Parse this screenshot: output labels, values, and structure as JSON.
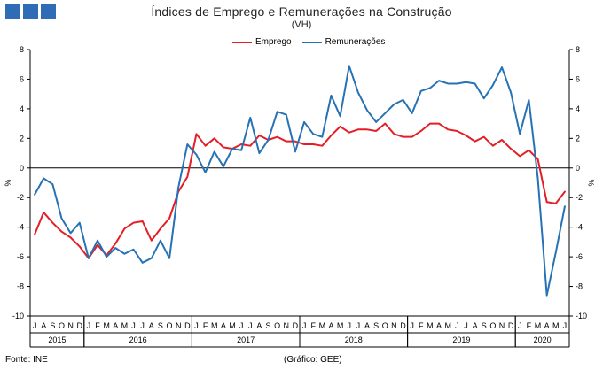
{
  "header": {
    "title": "Índices de Emprego  e Remunerações na Construção",
    "subtitle": "(VH)"
  },
  "footer": {
    "source": "Fonte: INE",
    "credit": "(Gráfico: GEE)"
  },
  "colors": {
    "emprego": "#e41e26",
    "remuneracoes": "#2672b5",
    "logo": "#2e6cb5"
  },
  "chart_data": {
    "type": "line",
    "title": "Índices de Emprego  e Remunerações na Construção",
    "subtitle": "(VH)",
    "ylabel_left": "%",
    "ylabel_right": "%",
    "ylim": [
      -10,
      8
    ],
    "yticks": [
      -10,
      -8,
      -6,
      -4,
      -2,
      0,
      2,
      4,
      6,
      8
    ],
    "grid": false,
    "legend_position": "top",
    "month_labels": [
      "J",
      "A",
      "S",
      "O",
      "N",
      "D",
      "J",
      "F",
      "M",
      "A",
      "M",
      "J",
      "J",
      "A",
      "S",
      "O",
      "N",
      "D",
      "J",
      "F",
      "M",
      "A",
      "M",
      "J",
      "J",
      "A",
      "S",
      "O",
      "N",
      "D",
      "J",
      "F",
      "M",
      "A",
      "M",
      "J",
      "J",
      "A",
      "S",
      "O",
      "N",
      "D",
      "J",
      "F",
      "M",
      "A",
      "M",
      "J",
      "J",
      "A",
      "S",
      "O",
      "N",
      "D",
      "J",
      "F",
      "M",
      "A",
      "M",
      "J"
    ],
    "years": [
      {
        "label": "2015",
        "start": 0,
        "end": 6
      },
      {
        "label": "2016",
        "start": 6,
        "end": 18
      },
      {
        "label": "2017",
        "start": 18,
        "end": 30
      },
      {
        "label": "2018",
        "start": 30,
        "end": 42
      },
      {
        "label": "2019",
        "start": 42,
        "end": 54
      },
      {
        "label": "2020",
        "start": 54,
        "end": 60
      }
    ],
    "x": [
      "2015-07",
      "2015-08",
      "2015-09",
      "2015-10",
      "2015-11",
      "2015-12",
      "2016-01",
      "2016-02",
      "2016-03",
      "2016-04",
      "2016-05",
      "2016-06",
      "2016-07",
      "2016-08",
      "2016-09",
      "2016-10",
      "2016-11",
      "2016-12",
      "2017-01",
      "2017-02",
      "2017-03",
      "2017-04",
      "2017-05",
      "2017-06",
      "2017-07",
      "2017-08",
      "2017-09",
      "2017-10",
      "2017-11",
      "2017-12",
      "2018-01",
      "2018-02",
      "2018-03",
      "2018-04",
      "2018-05",
      "2018-06",
      "2018-07",
      "2018-08",
      "2018-09",
      "2018-10",
      "2018-11",
      "2018-12",
      "2019-01",
      "2019-02",
      "2019-03",
      "2019-04",
      "2019-05",
      "2019-06",
      "2019-07",
      "2019-08",
      "2019-09",
      "2019-10",
      "2019-11",
      "2019-12",
      "2020-01",
      "2020-02",
      "2020-03",
      "2020-04",
      "2020-05",
      "2020-06"
    ],
    "series": [
      {
        "name": "Emprego",
        "color": "#e41e26",
        "values": [
          -4.5,
          -3.0,
          -3.7,
          -4.3,
          -4.7,
          -5.3,
          -6.1,
          -5.2,
          -5.9,
          -5.1,
          -4.1,
          -3.7,
          -3.6,
          -4.9,
          -4.1,
          -3.4,
          -1.6,
          -0.6,
          2.3,
          1.5,
          2.0,
          1.4,
          1.3,
          1.6,
          1.5,
          2.2,
          1.9,
          2.1,
          1.8,
          1.8,
          1.6,
          1.6,
          1.5,
          2.2,
          2.8,
          2.4,
          2.6,
          2.6,
          2.5,
          3.0,
          2.3,
          2.1,
          2.1,
          2.5,
          3.0,
          3.0,
          2.6,
          2.5,
          2.2,
          1.8,
          2.1,
          1.5,
          1.9,
          1.3,
          0.8,
          1.2,
          0.6,
          -2.3,
          -2.4,
          -1.6
        ]
      },
      {
        "name": "Remunerações",
        "color": "#2672b5",
        "values": [
          -1.8,
          -0.7,
          -1.1,
          -3.4,
          -4.4,
          -3.7,
          -6.1,
          -4.9,
          -6.0,
          -5.4,
          -5.8,
          -5.5,
          -6.4,
          -6.1,
          -4.9,
          -6.1,
          -1.3,
          1.6,
          0.9,
          -0.3,
          1.1,
          0.1,
          1.3,
          1.2,
          3.4,
          1.0,
          1.9,
          3.8,
          3.6,
          1.1,
          3.1,
          2.3,
          2.1,
          4.9,
          3.5,
          6.9,
          5.1,
          3.9,
          3.1,
          3.7,
          4.3,
          4.6,
          3.7,
          5.2,
          5.4,
          5.9,
          5.7,
          5.7,
          5.8,
          5.7,
          4.7,
          5.6,
          6.8,
          5.1,
          2.3,
          4.6,
          -0.7,
          -8.6,
          -5.7,
          -2.6
        ]
      }
    ]
  }
}
